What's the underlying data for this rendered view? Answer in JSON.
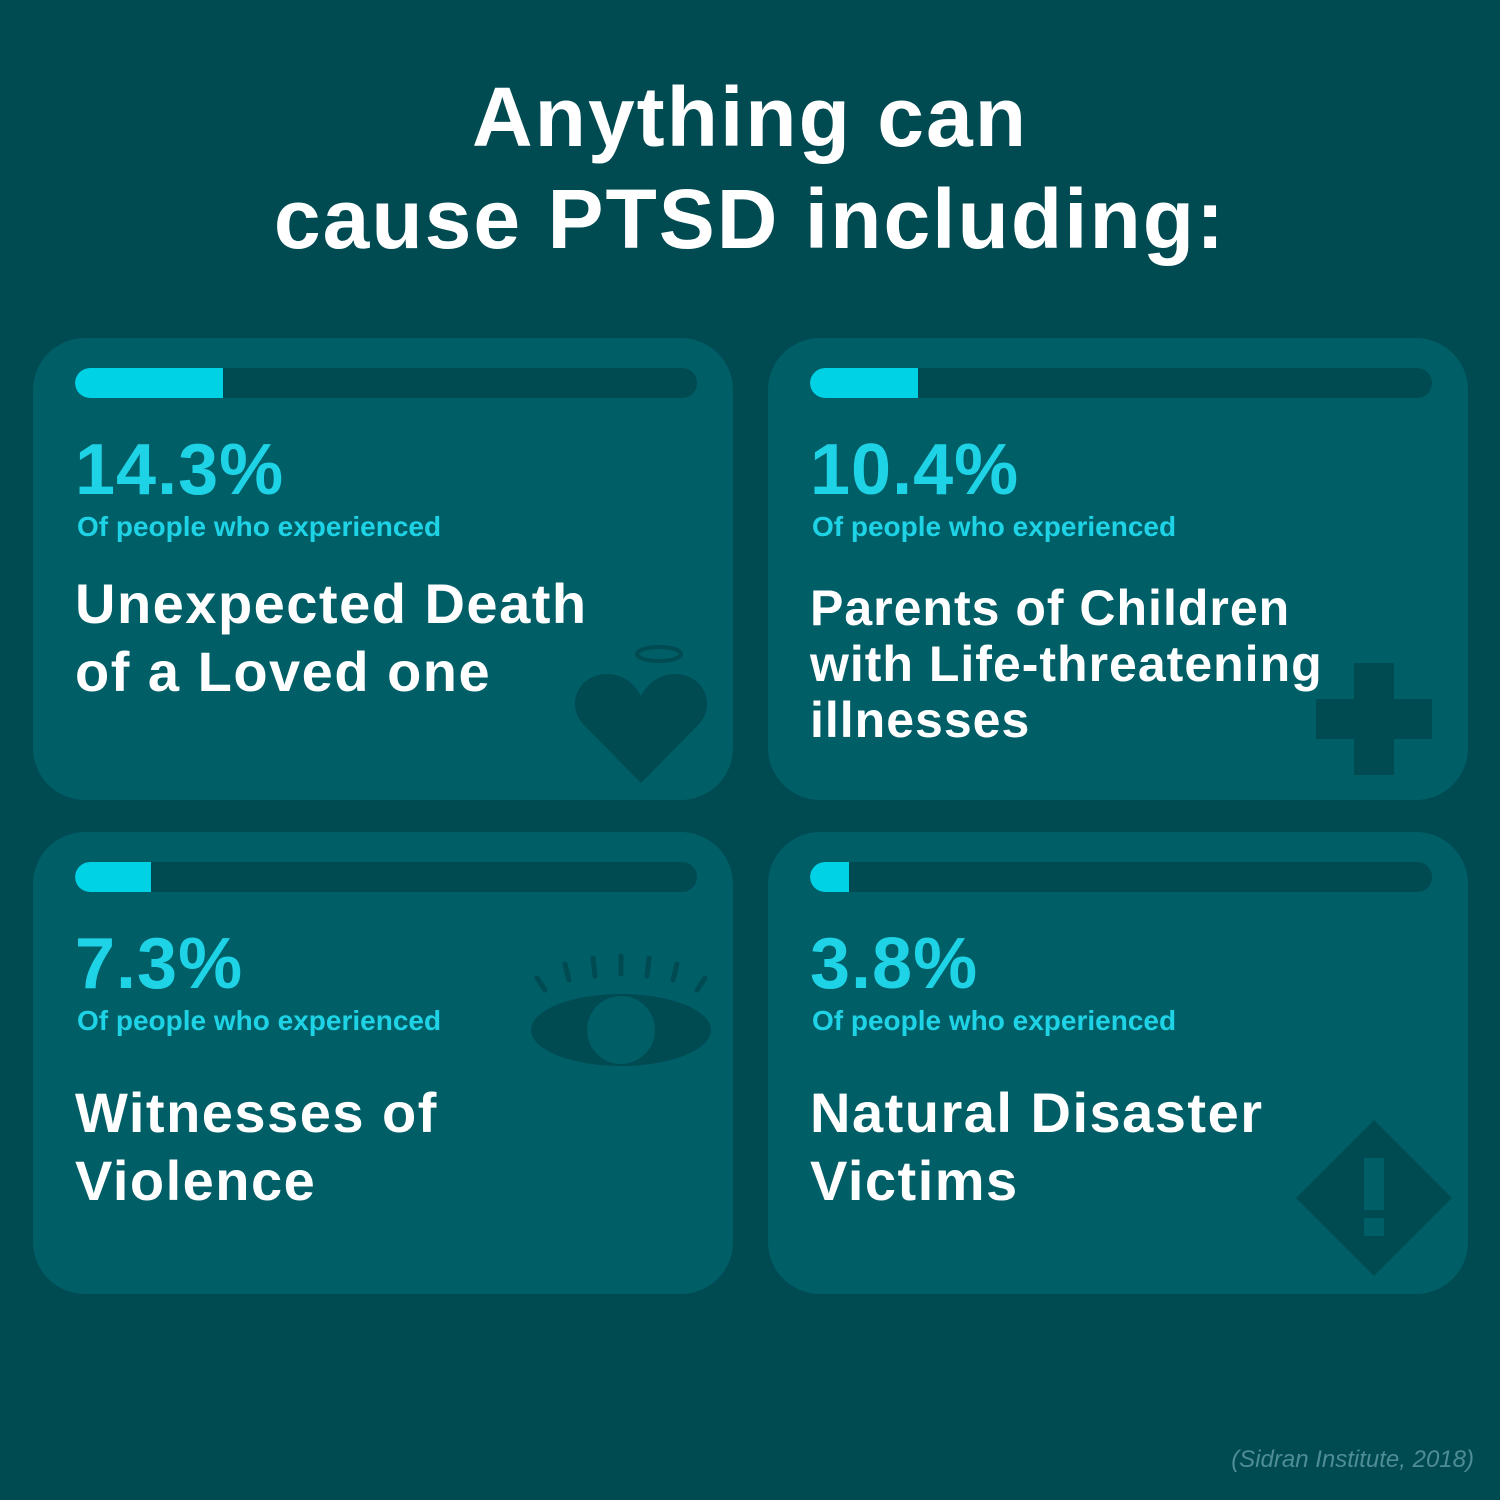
{
  "title_lines": [
    "Anything can",
    "cause PTSD including:"
  ],
  "colors": {
    "background": "#004a52",
    "card": "#005e67",
    "accent": "#00d2e6",
    "text": "#ffffff",
    "icon": "#004a52"
  },
  "chart_data": {
    "type": "bar",
    "orientation": "horizontal",
    "unit": "%",
    "categories": [
      "Unexpected Death of a Loved one",
      "Parents of Children with Life-threatening illnesses",
      "Witnesses of Violence",
      "Natural Disaster Victims"
    ],
    "values": [
      14.3,
      10.4,
      7.3,
      3.8
    ],
    "xlim": [
      0,
      60
    ],
    "value_labels": [
      "14.3%",
      "10.4%",
      "7.3%",
      "3.8%"
    ],
    "subtitle": "Of people who experienced"
  },
  "cards": [
    {
      "percent_text": "14.3%",
      "caption": "Of people who experienced",
      "label_lines": [
        "Unexpected Death",
        "of a Loved one"
      ],
      "icon": "heart-halo-icon"
    },
    {
      "percent_text": "10.4%",
      "caption": "Of people who experienced",
      "label_lines": [
        "Parents of Children",
        "with Life-threatening",
        "illnesses"
      ],
      "icon": "medical-cross-icon"
    },
    {
      "percent_text": "7.3%",
      "caption": "Of people who experienced",
      "label_lines": [
        "Witnesses of",
        "Violence"
      ],
      "icon": "eye-icon"
    },
    {
      "percent_text": "3.8%",
      "caption": "Of people who experienced",
      "label_lines": [
        "Natural Disaster",
        "Victims"
      ],
      "icon": "warning-diamond-icon"
    }
  ],
  "source": "(Sidran Institute, 2018)"
}
